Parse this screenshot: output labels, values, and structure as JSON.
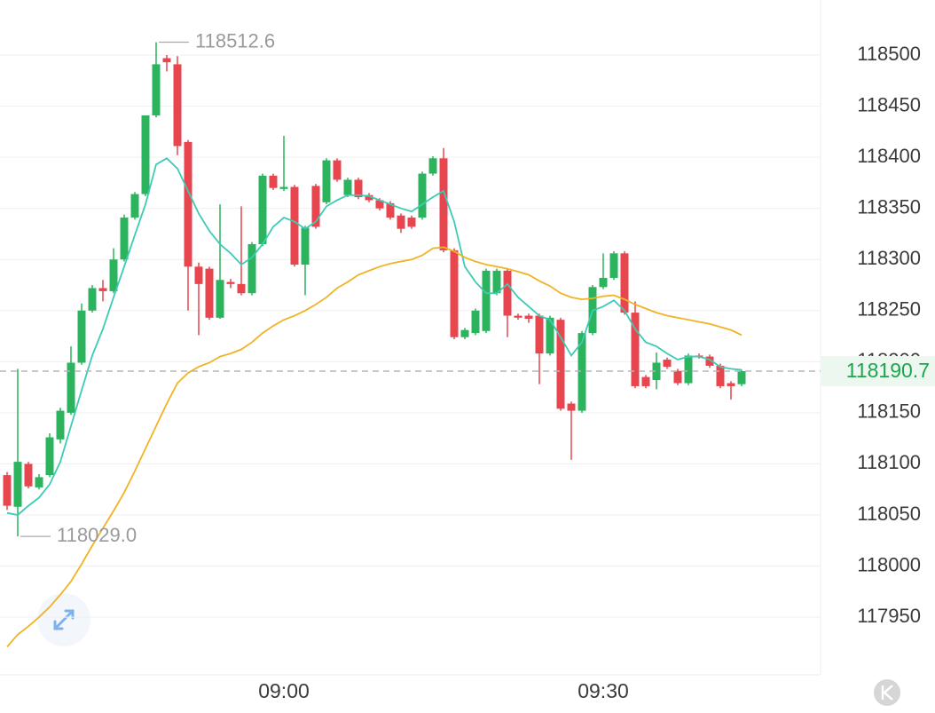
{
  "chart_data": {
    "type": "candlestick",
    "categories": [
      null,
      null,
      null,
      null,
      null,
      null,
      null,
      null,
      null,
      null,
      null,
      null,
      null,
      null,
      null,
      null,
      null,
      null,
      null,
      null,
      null,
      null,
      null,
      null,
      null,
      null,
      "09:00",
      null,
      null,
      null,
      null,
      null,
      null,
      null,
      null,
      null,
      null,
      null,
      null,
      null,
      null,
      null,
      null,
      null,
      null,
      null,
      null,
      null,
      null,
      null,
      null,
      null,
      null,
      null,
      null,
      null,
      "09:30",
      null,
      null,
      null,
      null,
      null,
      null,
      null,
      null,
      null,
      null,
      null,
      null,
      null
    ],
    "open": [
      118089,
      118058,
      118100,
      118077,
      118089,
      118124,
      118150,
      118199,
      118250,
      118272,
      118269,
      118300,
      118341,
      118364,
      118441,
      118497,
      118491,
      118415,
      118293,
      118291,
      118243,
      118278,
      118276,
      118267,
      118315,
      118382,
      118369,
      118371,
      118295,
      118372,
      118356,
      118397,
      118363,
      118378,
      118363,
      118358,
      118355,
      118343,
      118341,
      118341,
      118384,
      118399,
      118309,
      118224,
      118228,
      118230,
      118267,
      118289,
      118245,
      118245,
      118245,
      118208,
      118241,
      118159,
      118152,
      118228,
      118273,
      118282,
      118306,
      118248,
      118185,
      118182,
      118202,
      118191,
      118179,
      118206,
      118205,
      118196,
      118179,
      118178
    ],
    "high": [
      118092,
      118193,
      118102,
      118090,
      118130,
      118155,
      118215,
      118257,
      118275,
      118280,
      118311,
      118344,
      118366,
      118441,
      118512.6,
      118500,
      118499,
      118417,
      118297,
      118293,
      118354,
      118281,
      118352,
      118317,
      118384,
      118384,
      118421,
      118373,
      118333,
      118374,
      118399,
      118399,
      118380,
      118380,
      118365,
      118360,
      118357,
      118345,
      118343,
      118386,
      118401,
      118409,
      118311,
      118233,
      118252,
      118291,
      118291,
      118291,
      118247,
      118247,
      118247,
      118245,
      118243,
      118161,
      118230,
      118275,
      118306,
      118308,
      118308,
      118259,
      118187,
      118209,
      118204,
      118193,
      118208,
      118208,
      118207,
      118198,
      118181,
      118192
    ],
    "low": [
      118055,
      118029,
      118076,
      118075,
      118087,
      118120,
      118148,
      118197,
      118248,
      118259,
      118267,
      118298,
      118339,
      118362,
      118439,
      118484,
      118402,
      118250,
      118226,
      118241,
      118242,
      118272,
      118265,
      118265,
      118313,
      118368,
      118367,
      118293,
      118265,
      118330,
      118354,
      118376,
      118361,
      118359,
      118356,
      118348,
      118339,
      118326,
      118330,
      118339,
      118382,
      118307,
      118222,
      118222,
      118226,
      118228,
      118265,
      118224,
      118241,
      118238,
      118178,
      118206,
      118152,
      118104,
      118150,
      118226,
      118271,
      118280,
      118246,
      118174,
      118174,
      118173,
      118193,
      118177,
      118177,
      118203,
      118194,
      118174,
      118163,
      118176
    ],
    "close": [
      118059,
      118102,
      118078,
      118087,
      118126,
      118152,
      118199,
      118250,
      118272,
      118269,
      118300,
      118341,
      118364,
      118441,
      118491,
      118493,
      118411,
      118293,
      118276,
      118243,
      118280,
      118276,
      118267,
      118315,
      118382,
      118370,
      118371,
      118295,
      118331,
      118332,
      118397,
      118378,
      118378,
      118361,
      118358,
      118350,
      118341,
      118330,
      118332,
      118384,
      118399,
      118309,
      118224,
      118231,
      118250,
      118289,
      118289,
      118245,
      118243,
      118242,
      118208,
      118243,
      118154,
      118152,
      118228,
      118273,
      118282,
      118306,
      118248,
      118176,
      118176,
      118199,
      118195,
      118179,
      118206,
      118205,
      118196,
      118176,
      118176,
      118190.7
    ],
    "up_color": "#2bb35e",
    "down_color": "#e8464f",
    "lines": [
      {
        "color": "#3ccbb5",
        "values": [
          118052,
          118050,
          118059,
          118067,
          118080,
          118102,
          118137,
          118172,
          118206,
          118232,
          118263,
          118293,
          118324,
          118354,
          118393,
          118399,
          118389,
          118367,
          118345,
          118328,
          118315,
          118306,
          118295,
          118302,
          118315,
          118332,
          118341,
          118337,
          118330,
          118337,
          118352,
          118358,
          118363,
          118363,
          118362,
          118358,
          118354,
          118350,
          118347,
          118354,
          118361,
          118367,
          118337,
          118293,
          118278,
          118267,
          118267,
          118276,
          118263,
          118254,
          118245,
          118241,
          118224,
          118206,
          118219,
          118250,
          118254,
          118260,
          118250,
          118232,
          118219,
          118215,
          118208,
          118202,
          118205,
          118205,
          118202,
          118195,
          118193,
          118192
        ]
      },
      {
        "color": "#f0b423",
        "values": [
          117921,
          117933,
          117941,
          117950,
          117960,
          117972,
          117985,
          118002,
          118020,
          118037,
          118054,
          118072,
          118093,
          118115,
          118137,
          118159,
          118179,
          118189,
          118195,
          118199,
          118205,
          118208,
          118212,
          118219,
          118228,
          118235,
          118241,
          118245,
          118250,
          118256,
          118263,
          118272,
          118278,
          118285,
          118289,
          118293,
          118296,
          118298,
          118300,
          118304,
          118311,
          118312,
          118308,
          118302,
          118298,
          118295,
          118293,
          118291,
          118288,
          118285,
          118279,
          118274,
          118267,
          118263,
          118261,
          118262,
          118264,
          118265,
          118261,
          118256,
          118252,
          118248,
          118245,
          118243,
          118241,
          118239,
          118237,
          118234,
          118231,
          118226
        ]
      }
    ],
    "ylim": [
      117893.6,
      118553.9
    ],
    "yticks": [
      117950,
      118000,
      118050,
      118100,
      118150,
      118200,
      118250,
      118300,
      118350,
      118400,
      118450,
      118500
    ],
    "grid": true,
    "annotations": {
      "max": {
        "value": 118512.6,
        "label": "118512.6"
      },
      "min": {
        "value": 118029,
        "label": "118029.0"
      }
    },
    "last_price": {
      "value": 118190.7,
      "label": "118190.7"
    }
  }
}
